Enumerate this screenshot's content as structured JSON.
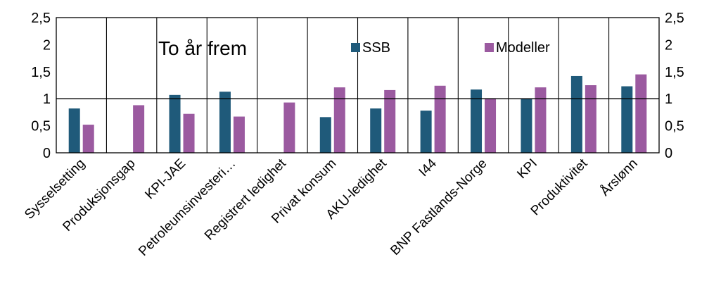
{
  "chart_data": {
    "type": "bar",
    "title": "To år frem",
    "categories": [
      "Sysselsetting",
      "Produksjonsgap",
      "KPI-JAE",
      "Petroleumsinvesteri…",
      "Registrert ledighet",
      "Privat konsum",
      "AKU-ledighet",
      "I44",
      "BNP Fastlands-Norge",
      "KPI",
      "Produktivitet",
      "Årslønn"
    ],
    "series": [
      {
        "name": "SSB",
        "color": "#1f5a7a",
        "values": [
          0.82,
          null,
          1.07,
          1.13,
          null,
          0.66,
          0.82,
          0.78,
          1.17,
          1.0,
          1.42,
          1.23
        ]
      },
      {
        "name": "Modeller",
        "color": "#9b5aa0",
        "values": [
          0.52,
          0.88,
          0.72,
          0.67,
          0.93,
          1.21,
          1.16,
          1.24,
          1.01,
          1.21,
          1.25,
          1.45
        ]
      }
    ],
    "ylim": [
      0,
      2.5
    ],
    "yticks": [
      "0",
      "0,5",
      "1",
      "1,5",
      "2",
      "2,5"
    ],
    "secondary_yticks": [
      "0",
      "0,5",
      "1",
      "1,5",
      "2",
      "2,5"
    ],
    "reference_line": 1,
    "legend_position": "top-right inside plot",
    "grid": false
  }
}
